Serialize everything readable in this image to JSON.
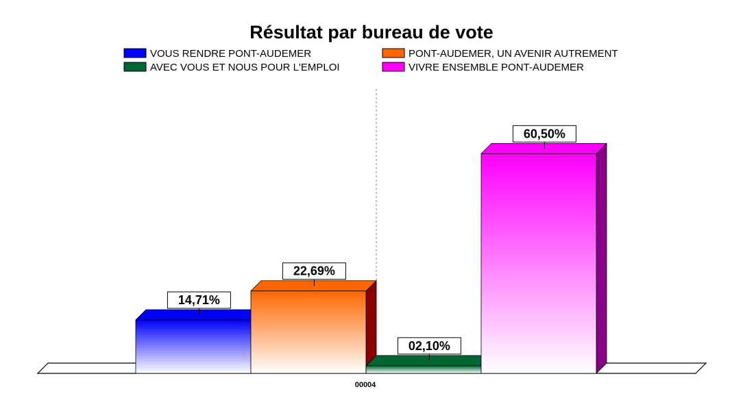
{
  "chart_data": {
    "type": "bar",
    "title": "Résultat par bureau de vote",
    "categories": [
      "00004"
    ],
    "unit": "%",
    "ylim": [
      0,
      100
    ],
    "grid": false,
    "legend_position": "top",
    "series": [
      {
        "name": "VOUS RENDRE PONT-AUDEMER",
        "values": [
          14.71
        ],
        "label": "14,71%",
        "color": "#0000ff",
        "side_color": "#0000a0"
      },
      {
        "name": "PONT-AUDEMER, UN AVENIR AUTREMENT",
        "values": [
          22.69
        ],
        "label": "22,69%",
        "color": "#ff6600",
        "side_color": "#8b0000"
      },
      {
        "name": "AVEC VOUS ET NOUS POUR L'EMPLOI",
        "values": [
          2.1
        ],
        "label": "02,10%",
        "color": "#006633",
        "side_color": "#003300"
      },
      {
        "name": "VIVRE ENSEMBLE PONT-AUDEMER",
        "values": [
          60.5
        ],
        "label": "60,50%",
        "color": "#ff00ff",
        "side_color": "#880088"
      }
    ]
  }
}
